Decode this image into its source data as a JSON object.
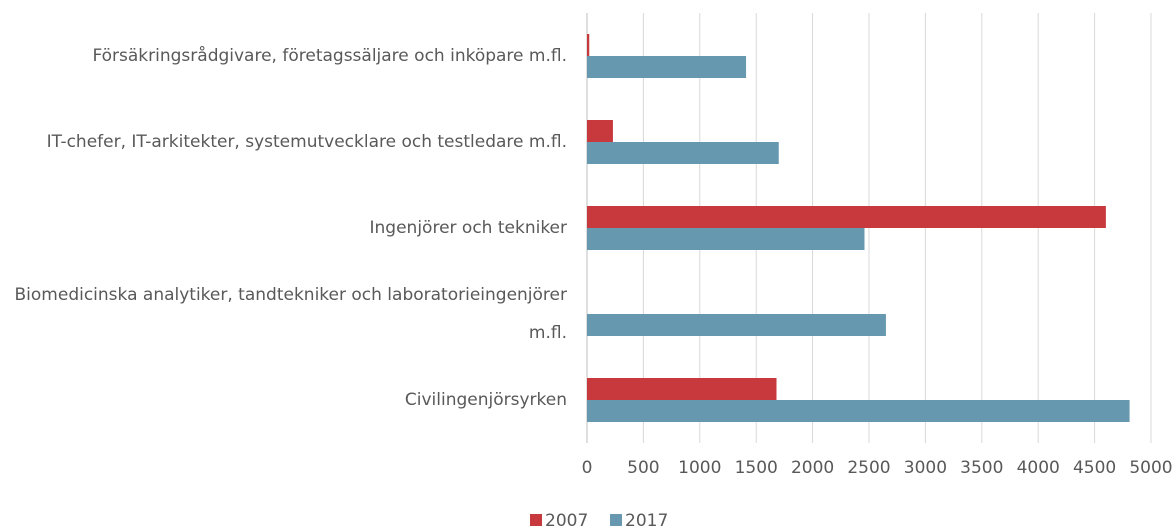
{
  "chart_data": {
    "type": "hbar",
    "categories": [
      "Försäkringsrådgivare, företagssäljare och inköpare m.fl.",
      "IT-chefer, IT-arkitekter, systemutvecklare och testledare m.fl.",
      "Ingenjörer och tekniker",
      "Biomedicinska analytiker, tandtekniker och laboratorieingenjörer m.fl.",
      "Civilingenjörsyrken"
    ],
    "series": [
      {
        "name": "2007",
        "color": "#c8393d",
        "values": [
          20,
          230,
          4600,
          0,
          1680
        ]
      },
      {
        "name": "2017",
        "color": "#6699b0",
        "values": [
          1410,
          1700,
          2460,
          2650,
          4810
        ]
      }
    ],
    "xlim": [
      0,
      5000
    ],
    "xticks": [
      0,
      500,
      1000,
      1500,
      2000,
      2500,
      3000,
      3500,
      4000,
      4500,
      5000
    ],
    "grid": true,
    "legend": "bottom"
  }
}
